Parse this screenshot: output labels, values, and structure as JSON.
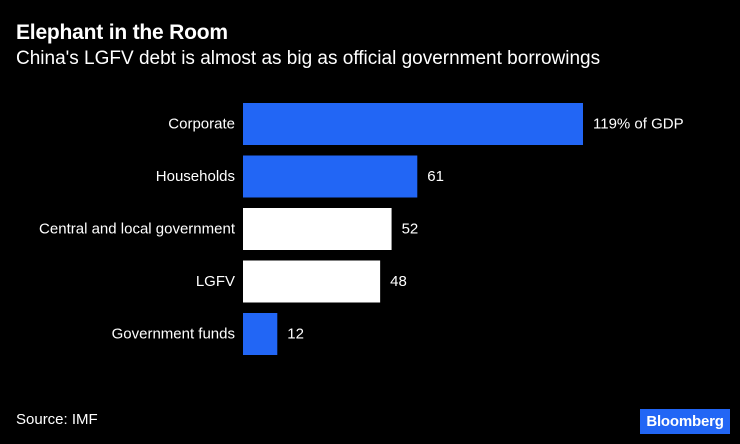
{
  "header": {
    "title": "Elephant in the Room",
    "subtitle": "China's LGFV debt is almost as big as official government borrowings"
  },
  "footer": {
    "source": "Source: IMF",
    "brand": "Bloomberg"
  },
  "colors": {
    "background": "#000000",
    "blue": "#2266f5",
    "white": "#ffffff"
  },
  "chart_data": {
    "type": "bar",
    "orientation": "horizontal",
    "title": "Elephant in the Room",
    "subtitle": "China's LGFV debt is almost as big as official government borrowings",
    "categories": [
      "Corporate",
      "Households",
      "Central and local government",
      "LGFV",
      "Government funds"
    ],
    "values": [
      119,
      61,
      52,
      48,
      12
    ],
    "value_labels": [
      "119% of GDP",
      "61",
      "52",
      "48",
      "12"
    ],
    "bar_colors": [
      "#2266f5",
      "#2266f5",
      "#ffffff",
      "#ffffff",
      "#2266f5"
    ],
    "unit": "% of GDP",
    "xlim": [
      0,
      119
    ],
    "grid": false,
    "legend": "none"
  }
}
